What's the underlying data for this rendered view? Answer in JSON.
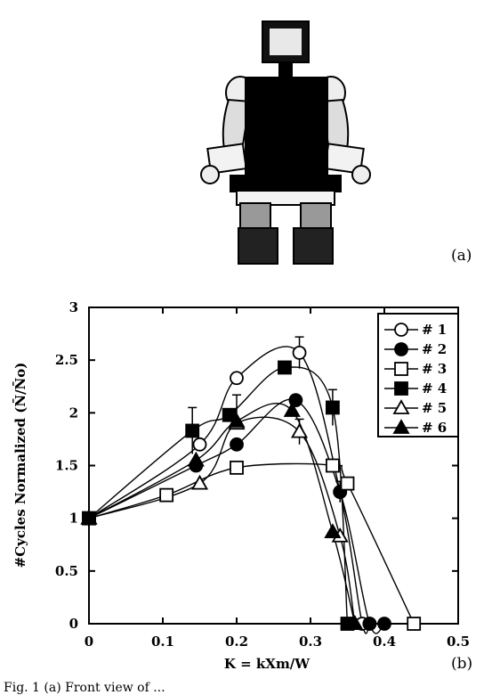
{
  "figure": {
    "panel_a_label": "(a)",
    "panel_b_label": "(b)",
    "caption": "Fig. 1 (a) Front view of ..."
  },
  "chart_data": {
    "type": "line",
    "xlabel": "K = kXm/W",
    "ylabel": "#Cycles Normalized (N̄/N̄o)",
    "xlim": [
      0,
      0.5
    ],
    "ylim": [
      0,
      3
    ],
    "x_ticks": [
      "0",
      "0.1",
      "0.2",
      "0.3",
      "0.4",
      "0.5"
    ],
    "y_ticks": [
      "0",
      "0.5",
      "1",
      "1.5",
      "2",
      "2.5",
      "3"
    ],
    "legend_position": "top-right",
    "series": [
      {
        "name": "# 1",
        "marker": "circle-open",
        "x": [
          0,
          0.15,
          0.2,
          0.285,
          0.34,
          0.37,
          0.38
        ],
        "y": [
          1,
          1.7,
          2.33,
          2.57,
          1.25,
          0,
          0
        ]
      },
      {
        "name": "# 2",
        "marker": "circle-filled",
        "x": [
          0,
          0.145,
          0.2,
          0.28,
          0.34,
          0.38,
          0.4
        ],
        "y": [
          1,
          1.5,
          1.7,
          2.12,
          1.25,
          0,
          0
        ]
      },
      {
        "name": "# 3",
        "marker": "square-open",
        "x": [
          0,
          0.105,
          0.2,
          0.33,
          0.35,
          0.44
        ],
        "y": [
          1,
          1.22,
          1.48,
          1.5,
          1.33,
          0
        ]
      },
      {
        "name": "# 4",
        "marker": "square-filled",
        "x": [
          0,
          0.14,
          0.19,
          0.265,
          0.33,
          0.35
        ],
        "y": [
          1,
          1.83,
          1.98,
          2.43,
          2.05,
          0
        ]
      },
      {
        "name": "# 5",
        "marker": "triangle-open",
        "x": [
          0,
          0.15,
          0.2,
          0.285,
          0.34,
          0.36
        ],
        "y": [
          1,
          1.33,
          1.9,
          1.82,
          0.83,
          0
        ]
      },
      {
        "name": "# 6",
        "marker": "triangle-filled",
        "x": [
          0,
          0.145,
          0.2,
          0.275,
          0.33,
          0.36
        ],
        "y": [
          1,
          1.55,
          1.92,
          2.02,
          0.87,
          0
        ]
      }
    ],
    "error_bars": [
      {
        "x": 0.14,
        "y": 1.83,
        "err": 0.22
      },
      {
        "x": 0.2,
        "y": 2.05,
        "err": 0.12
      },
      {
        "x": 0.285,
        "y": 2.57,
        "err": 0.15
      },
      {
        "x": 0.285,
        "y": 1.82,
        "err": 0.12
      },
      {
        "x": 0.33,
        "y": 2.05,
        "err": 0.17
      },
      {
        "x": 0.34,
        "y": 1.25,
        "err": 0.1
      }
    ]
  }
}
